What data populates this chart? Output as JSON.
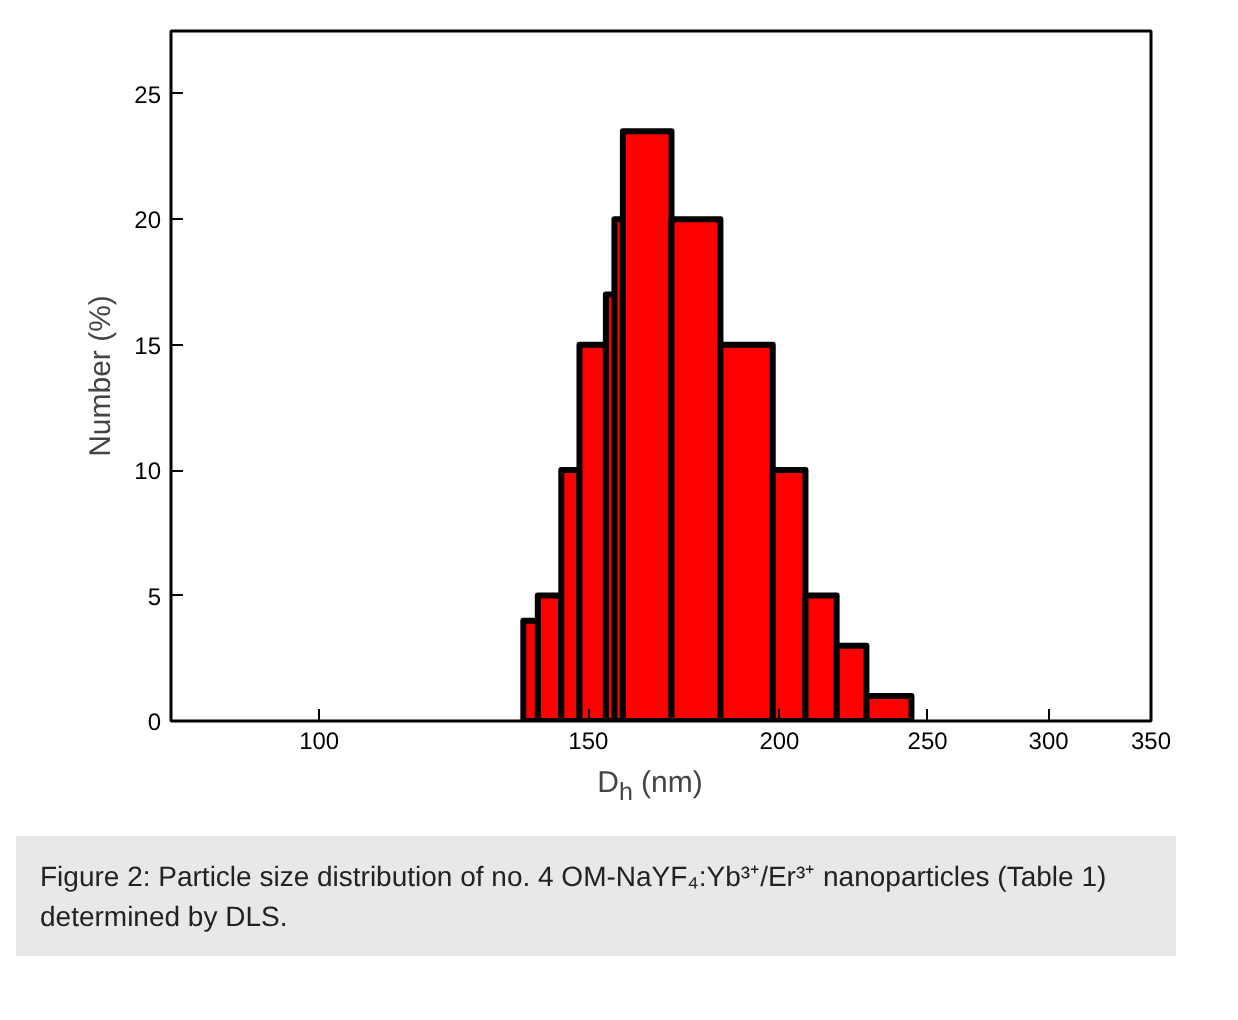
{
  "chart_data": {
    "type": "histogram",
    "xlabel": "D$_{h}$ (nm)",
    "ylabel": "Number (%)",
    "bins": [
      136,
      139,
      144,
      148,
      154,
      156,
      158,
      170,
      183,
      198,
      208,
      218,
      228,
      244
    ],
    "values": [
      4,
      5,
      10,
      15,
      17,
      20,
      23.5,
      20,
      15,
      10,
      5,
      3,
      1
    ],
    "color": "#ff0000",
    "log": "x",
    "xlim": [
      80,
      350
    ],
    "xticks": [
      100,
      150,
      200,
      250,
      300,
      350
    ],
    "ylim": [
      0,
      27.5
    ],
    "yticks": [
      0,
      5,
      10,
      15,
      20,
      25
    ],
    "grid": false,
    "annotations": [
      "Figure 2: Particle size distribution of no. 4 OM-NaYF₄:Yb³⁺/Er³⁺ nanoparticles (Table 1) determined by DLS."
    ]
  }
}
